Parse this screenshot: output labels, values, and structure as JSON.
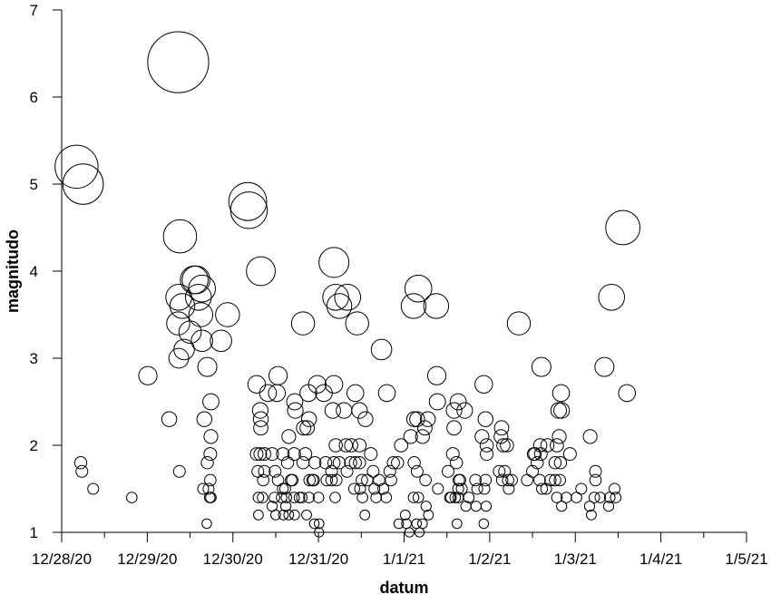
{
  "chart_data": {
    "type": "scatter",
    "title": "",
    "xlabel": "datum",
    "ylabel": "magnitudo",
    "x_axis": {
      "type": "date",
      "min": "2020-12-28",
      "max": "2021-01-05",
      "ticks": [
        "2020-12-28",
        "2020-12-29",
        "2020-12-30",
        "2020-12-31",
        "2021-01-01",
        "2021-01-02",
        "2021-01-03",
        "2021-01-04",
        "2021-01-05"
      ],
      "tick_labels": [
        "12/28/20",
        "12/29/20",
        "12/30/20",
        "12/31/20",
        "1/1/21",
        "1/2/21",
        "1/3/21",
        "1/4/21",
        "1/5/21"
      ],
      "minor_ticks_per_major": 1
    },
    "y_axis": {
      "min": 1,
      "max": 7,
      "ticks": [
        1,
        2,
        3,
        4,
        5,
        6,
        7
      ],
      "tick_labels": [
        "1",
        "2",
        "3",
        "4",
        "5",
        "6",
        "7"
      ]
    },
    "grid": false,
    "legend": "none",
    "marker": "open circle, size proportional to magnitudo",
    "colors": {
      "marker_stroke": "#000000",
      "axis": "#000000",
      "background": "#ffffff"
    },
    "points": [
      {
        "x": "2020-12-28 04:10",
        "y": 5.2
      },
      {
        "x": "2020-12-28 06:00",
        "y": 5.0
      },
      {
        "x": "2020-12-28 05:20",
        "y": 1.8
      },
      {
        "x": "2020-12-28 05:40",
        "y": 1.7
      },
      {
        "x": "2020-12-28 08:50",
        "y": 1.5
      },
      {
        "x": "2020-12-28 19:40",
        "y": 1.4
      },
      {
        "x": "2020-12-29 00:10",
        "y": 2.8
      },
      {
        "x": "2020-12-29 06:10",
        "y": 2.3
      },
      {
        "x": "2020-12-29 08:40",
        "y": 6.4
      },
      {
        "x": "2020-12-29 09:10",
        "y": 4.4
      },
      {
        "x": "2020-12-29 08:50",
        "y": 3.7
      },
      {
        "x": "2020-12-29 09:50",
        "y": 3.6
      },
      {
        "x": "2020-12-29 08:40",
        "y": 3.4
      },
      {
        "x": "2020-12-29 10:20",
        "y": 3.1
      },
      {
        "x": "2020-12-29 08:50",
        "y": 3.0
      },
      {
        "x": "2020-12-29 09:00",
        "y": 1.7
      },
      {
        "x": "2020-12-29 13:10",
        "y": 3.9
      },
      {
        "x": "2020-12-29 13:40",
        "y": 3.9
      },
      {
        "x": "2020-12-29 14:20",
        "y": 3.7
      },
      {
        "x": "2020-12-29 15:20",
        "y": 3.8
      },
      {
        "x": "2020-12-29 15:00",
        "y": 3.5
      },
      {
        "x": "2020-12-29 12:00",
        "y": 3.3
      },
      {
        "x": "2020-12-29 15:20",
        "y": 3.2
      },
      {
        "x": "2020-12-29 16:50",
        "y": 2.9
      },
      {
        "x": "2020-12-29 16:00",
        "y": 2.3
      },
      {
        "x": "2020-12-29 17:50",
        "y": 2.5
      },
      {
        "x": "2020-12-29 17:50",
        "y": 2.1
      },
      {
        "x": "2020-12-29 17:40",
        "y": 1.9
      },
      {
        "x": "2020-12-29 16:50",
        "y": 1.8
      },
      {
        "x": "2020-12-29 17:40",
        "y": 1.6
      },
      {
        "x": "2020-12-29 15:40",
        "y": 1.5
      },
      {
        "x": "2020-12-29 17:10",
        "y": 1.5
      },
      {
        "x": "2020-12-29 17:30",
        "y": 1.4
      },
      {
        "x": "2020-12-29 17:50",
        "y": 1.4
      },
      {
        "x": "2020-12-29 16:40",
        "y": 1.1
      },
      {
        "x": "2020-12-29 20:40",
        "y": 3.2
      },
      {
        "x": "2020-12-29 22:30",
        "y": 3.5
      },
      {
        "x": "2020-12-30 04:10",
        "y": 4.8
      },
      {
        "x": "2020-12-30 04:30",
        "y": 4.7
      },
      {
        "x": "2020-12-30 07:50",
        "y": 4.0
      },
      {
        "x": "2020-12-30 06:40",
        "y": 2.7
      },
      {
        "x": "2020-12-30 09:50",
        "y": 2.6
      },
      {
        "x": "2020-12-30 07:40",
        "y": 2.4
      },
      {
        "x": "2020-12-30 07:50",
        "y": 2.3
      },
      {
        "x": "2020-12-30 07:50",
        "y": 2.2
      },
      {
        "x": "2020-12-30 06:40",
        "y": 1.9
      },
      {
        "x": "2020-12-30 07:40",
        "y": 1.9
      },
      {
        "x": "2020-12-30 08:50",
        "y": 1.9
      },
      {
        "x": "2020-12-30 07:00",
        "y": 1.7
      },
      {
        "x": "2020-12-30 08:50",
        "y": 1.7
      },
      {
        "x": "2020-12-30 08:30",
        "y": 1.6
      },
      {
        "x": "2020-12-30 07:10",
        "y": 1.4
      },
      {
        "x": "2020-12-30 08:20",
        "y": 1.4
      },
      {
        "x": "2020-12-30 07:10",
        "y": 1.2
      },
      {
        "x": "2020-12-30 12:40",
        "y": 2.8
      },
      {
        "x": "2020-12-30 12:20",
        "y": 2.6
      },
      {
        "x": "2020-12-30 11:00",
        "y": 1.9
      },
      {
        "x": "2020-12-30 11:50",
        "y": 1.7
      },
      {
        "x": "2020-12-30 12:40",
        "y": 1.6
      },
      {
        "x": "2020-12-30 11:40",
        "y": 1.4
      },
      {
        "x": "2020-12-30 11:00",
        "y": 1.3
      },
      {
        "x": "2020-12-30 12:00",
        "y": 1.2
      },
      {
        "x": "2020-12-30 15:40",
        "y": 2.1
      },
      {
        "x": "2020-12-30 14:00",
        "y": 1.9
      },
      {
        "x": "2020-12-30 15:20",
        "y": 1.8
      },
      {
        "x": "2020-12-30 14:00",
        "y": 1.5
      },
      {
        "x": "2020-12-30 14:40",
        "y": 1.5
      },
      {
        "x": "2020-12-30 15:00",
        "y": 1.4
      },
      {
        "x": "2020-12-30 13:40",
        "y": 1.4
      },
      {
        "x": "2020-12-30 14:50",
        "y": 1.3
      },
      {
        "x": "2020-12-30 14:10",
        "y": 1.2
      },
      {
        "x": "2020-12-30 15:40",
        "y": 1.2
      },
      {
        "x": "2020-12-30 17:20",
        "y": 2.5
      },
      {
        "x": "2020-12-30 17:30",
        "y": 2.4
      },
      {
        "x": "2020-12-30 17:10",
        "y": 1.9
      },
      {
        "x": "2020-12-30 16:20",
        "y": 1.6
      },
      {
        "x": "2020-12-30 16:40",
        "y": 1.6
      },
      {
        "x": "2020-12-30 17:10",
        "y": 1.4
      },
      {
        "x": "2020-12-30 18:40",
        "y": 1.4
      },
      {
        "x": "2020-12-30 17:20",
        "y": 1.2
      },
      {
        "x": "2020-12-30 19:40",
        "y": 3.4
      },
      {
        "x": "2020-12-30 19:50",
        "y": 2.2
      },
      {
        "x": "2020-12-30 20:50",
        "y": 2.2
      },
      {
        "x": "2020-12-30 21:20",
        "y": 2.3
      },
      {
        "x": "2020-12-30 19:40",
        "y": 1.8
      },
      {
        "x": "2020-12-30 20:20",
        "y": 1.9
      },
      {
        "x": "2020-12-30 21:30",
        "y": 1.6
      },
      {
        "x": "2020-12-30 22:20",
        "y": 1.6
      },
      {
        "x": "2020-12-30 19:20",
        "y": 1.4
      },
      {
        "x": "2020-12-30 21:20",
        "y": 1.4
      },
      {
        "x": "2020-12-30 20:40",
        "y": 1.2
      },
      {
        "x": "2020-12-30 22:50",
        "y": 1.1
      },
      {
        "x": "2020-12-30 21:10",
        "y": 2.6
      },
      {
        "x": "2020-12-30 23:40",
        "y": 2.7
      },
      {
        "x": "2020-12-30 23:00",
        "y": 1.8
      },
      {
        "x": "2020-12-30 22:40",
        "y": 1.6
      },
      {
        "x": "2020-12-31 00:00",
        "y": 1.4
      },
      {
        "x": "2020-12-31 00:10",
        "y": 1.1
      },
      {
        "x": "2020-12-31 00:10",
        "y": 1.0
      },
      {
        "x": "2020-12-31 04:20",
        "y": 4.1
      },
      {
        "x": "2020-12-31 04:50",
        "y": 3.7
      },
      {
        "x": "2020-12-31 05:50",
        "y": 3.6
      },
      {
        "x": "2020-12-31 08:10",
        "y": 3.7
      },
      {
        "x": "2020-12-31 01:30",
        "y": 2.6
      },
      {
        "x": "2020-12-31 04:20",
        "y": 2.7
      },
      {
        "x": "2020-12-31 04:00",
        "y": 2.4
      },
      {
        "x": "2020-12-31 07:10",
        "y": 2.4
      },
      {
        "x": "2020-12-31 04:50",
        "y": 2.0
      },
      {
        "x": "2020-12-31 02:00",
        "y": 1.8
      },
      {
        "x": "2020-12-31 04:20",
        "y": 1.8
      },
      {
        "x": "2020-12-31 05:50",
        "y": 1.8
      },
      {
        "x": "2020-12-31 02:20",
        "y": 1.6
      },
      {
        "x": "2020-12-31 03:40",
        "y": 1.6
      },
      {
        "x": "2020-12-31 05:00",
        "y": 1.6
      },
      {
        "x": "2020-12-31 04:40",
        "y": 1.4
      },
      {
        "x": "2020-12-31 03:40",
        "y": 1.7
      },
      {
        "x": "2020-12-31 10:50",
        "y": 3.4
      },
      {
        "x": "2020-12-31 10:20",
        "y": 2.6
      },
      {
        "x": "2020-12-31 11:30",
        "y": 2.4
      },
      {
        "x": "2020-12-31 13:10",
        "y": 2.3
      },
      {
        "x": "2020-12-31 07:40",
        "y": 2.0
      },
      {
        "x": "2020-12-31 09:10",
        "y": 2.0
      },
      {
        "x": "2020-12-31 11:30",
        "y": 2.0
      },
      {
        "x": "2020-12-31 08:00",
        "y": 1.7
      },
      {
        "x": "2020-12-31 09:00",
        "y": 1.8
      },
      {
        "x": "2020-12-31 10:20",
        "y": 1.8
      },
      {
        "x": "2020-12-31 11:30",
        "y": 1.8
      },
      {
        "x": "2020-12-31 12:10",
        "y": 1.6
      },
      {
        "x": "2020-12-31 10:00",
        "y": 1.5
      },
      {
        "x": "2020-12-31 11:40",
        "y": 1.5
      },
      {
        "x": "2020-12-31 12:20",
        "y": 1.4
      },
      {
        "x": "2020-12-31 13:00",
        "y": 1.2
      },
      {
        "x": "2020-12-31 13:40",
        "y": 1.6
      },
      {
        "x": "2020-12-31 17:40",
        "y": 3.1
      },
      {
        "x": "2020-12-31 19:10",
        "y": 2.6
      },
      {
        "x": "2020-12-31 14:40",
        "y": 1.9
      },
      {
        "x": "2020-12-31 15:20",
        "y": 1.7
      },
      {
        "x": "2020-12-31 15:40",
        "y": 1.5
      },
      {
        "x": "2020-12-31 16:10",
        "y": 1.4
      },
      {
        "x": "2020-12-31 17:00",
        "y": 1.6
      },
      {
        "x": "2020-12-31 18:10",
        "y": 1.5
      },
      {
        "x": "2020-12-31 19:00",
        "y": 1.4
      },
      {
        "x": "2020-12-31 20:00",
        "y": 1.7
      },
      {
        "x": "2020-12-31 20:20",
        "y": 1.6
      },
      {
        "x": "2020-12-31 21:00",
        "y": 1.8
      },
      {
        "x": "2020-12-31 22:10",
        "y": 1.8
      },
      {
        "x": "2020-12-31 23:10",
        "y": 2.0
      },
      {
        "x": "2020-12-31 22:30",
        "y": 1.1
      },
      {
        "x": "2021-01-01 00:20",
        "y": 1.2
      },
      {
        "x": "2021-01-01 00:40",
        "y": 1.1
      },
      {
        "x": "2021-01-01 01:30",
        "y": 1.0
      },
      {
        "x": "2021-01-01 02:40",
        "y": 3.6
      },
      {
        "x": "2021-01-01 04:00",
        "y": 3.8
      },
      {
        "x": "2021-01-01 02:50",
        "y": 2.3
      },
      {
        "x": "2021-01-01 03:40",
        "y": 2.3
      },
      {
        "x": "2021-01-01 01:50",
        "y": 2.1
      },
      {
        "x": "2021-01-01 02:50",
        "y": 1.8
      },
      {
        "x": "2021-01-01 03:40",
        "y": 1.7
      },
      {
        "x": "2021-01-01 04:00",
        "y": 1.4
      },
      {
        "x": "2021-01-01 02:40",
        "y": 1.4
      },
      {
        "x": "2021-01-01 03:30",
        "y": 1.1
      },
      {
        "x": "2021-01-01 04:20",
        "y": 1.0
      },
      {
        "x": "2021-01-01 05:10",
        "y": 1.1
      },
      {
        "x": "2021-01-01 05:50",
        "y": 2.2
      },
      {
        "x": "2021-01-01 05:10",
        "y": 2.1
      },
      {
        "x": "2021-01-01 06:40",
        "y": 2.3
      },
      {
        "x": "2021-01-01 06:00",
        "y": 1.6
      },
      {
        "x": "2021-01-01 06:10",
        "y": 1.3
      },
      {
        "x": "2021-01-01 06:50",
        "y": 1.2
      },
      {
        "x": "2021-01-01 09:00",
        "y": 3.6
      },
      {
        "x": "2021-01-01 09:10",
        "y": 2.8
      },
      {
        "x": "2021-01-01 09:20",
        "y": 2.5
      },
      {
        "x": "2021-01-01 09:30",
        "y": 1.5
      },
      {
        "x": "2021-01-01 14:00",
        "y": 2.4
      },
      {
        "x": "2021-01-01 15:10",
        "y": 2.5
      },
      {
        "x": "2021-01-01 14:00",
        "y": 2.2
      },
      {
        "x": "2021-01-01 13:40",
        "y": 1.9
      },
      {
        "x": "2021-01-01 12:20",
        "y": 1.7
      },
      {
        "x": "2021-01-01 13:10",
        "y": 1.4
      },
      {
        "x": "2021-01-01 12:50",
        "y": 1.4
      },
      {
        "x": "2021-01-01 14:40",
        "y": 1.8
      },
      {
        "x": "2021-01-01 15:20",
        "y": 1.6
      },
      {
        "x": "2021-01-01 15:10",
        "y": 1.5
      },
      {
        "x": "2021-01-01 16:10",
        "y": 1.5
      },
      {
        "x": "2021-01-01 15:40",
        "y": 1.6
      },
      {
        "x": "2021-01-01 14:20",
        "y": 1.4
      },
      {
        "x": "2021-01-01 15:10",
        "y": 1.4
      },
      {
        "x": "2021-01-01 14:50",
        "y": 1.1
      },
      {
        "x": "2021-01-01 17:00",
        "y": 2.4
      },
      {
        "x": "2021-01-01 17:20",
        "y": 1.3
      },
      {
        "x": "2021-01-01 18:10",
        "y": 1.4
      },
      {
        "x": "2021-01-01 20:10",
        "y": 1.3
      },
      {
        "x": "2021-01-01 20:30",
        "y": 1.5
      },
      {
        "x": "2021-01-01 20:00",
        "y": 1.6
      },
      {
        "x": "2021-01-01 21:50",
        "y": 2.1
      },
      {
        "x": "2021-01-01 22:20",
        "y": 2.7
      },
      {
        "x": "2021-01-01 22:50",
        "y": 2.3
      },
      {
        "x": "2021-01-01 23:10",
        "y": 1.9
      },
      {
        "x": "2021-01-01 23:10",
        "y": 2.0
      },
      {
        "x": "2021-01-01 22:50",
        "y": 1.6
      },
      {
        "x": "2021-01-01 23:00",
        "y": 1.3
      },
      {
        "x": "2021-01-01 22:30",
        "y": 1.5
      },
      {
        "x": "2021-01-01 22:20",
        "y": 1.1
      },
      {
        "x": "2021-01-02 03:20",
        "y": 2.2
      },
      {
        "x": "2021-01-02 03:10",
        "y": 2.1
      },
      {
        "x": "2021-01-02 02:40",
        "y": 1.7
      },
      {
        "x": "2021-01-02 03:50",
        "y": 2.0
      },
      {
        "x": "2021-01-02 04:50",
        "y": 2.0
      },
      {
        "x": "2021-01-02 04:10",
        "y": 1.7
      },
      {
        "x": "2021-01-02 05:10",
        "y": 1.6
      },
      {
        "x": "2021-01-02 03:30",
        "y": 1.6
      },
      {
        "x": "2021-01-02 06:10",
        "y": 1.6
      },
      {
        "x": "2021-01-02 05:20",
        "y": 1.5
      },
      {
        "x": "2021-01-02 08:10",
        "y": 3.4
      },
      {
        "x": "2021-01-02 10:30",
        "y": 1.6
      },
      {
        "x": "2021-01-02 12:00",
        "y": 1.7
      },
      {
        "x": "2021-01-02 12:20",
        "y": 1.9
      },
      {
        "x": "2021-01-02 12:40",
        "y": 1.9
      },
      {
        "x": "2021-01-02 13:20",
        "y": 1.8
      },
      {
        "x": "2021-01-02 14:10",
        "y": 2.0
      },
      {
        "x": "2021-01-02 14:20",
        "y": 1.9
      },
      {
        "x": "2021-01-02 14:00",
        "y": 1.6
      },
      {
        "x": "2021-01-02 14:40",
        "y": 1.5
      },
      {
        "x": "2021-01-02 15:50",
        "y": 1.5
      },
      {
        "x": "2021-01-02 14:30",
        "y": 2.9
      },
      {
        "x": "2021-01-02 16:10",
        "y": 2.0
      },
      {
        "x": "2021-01-02 17:00",
        "y": 1.6
      },
      {
        "x": "2021-01-02 18:20",
        "y": 1.6
      },
      {
        "x": "2021-01-02 18:20",
        "y": 1.8
      },
      {
        "x": "2021-01-02 18:50",
        "y": 2.0
      },
      {
        "x": "2021-01-02 19:20",
        "y": 2.4
      },
      {
        "x": "2021-01-02 20:10",
        "y": 2.4
      },
      {
        "x": "2021-01-02 20:00",
        "y": 2.6
      },
      {
        "x": "2021-01-02 19:30",
        "y": 2.1
      },
      {
        "x": "2021-01-02 19:50",
        "y": 1.8
      },
      {
        "x": "2021-01-02 19:40",
        "y": 1.6
      },
      {
        "x": "2021-01-02 18:50",
        "y": 1.4
      },
      {
        "x": "2021-01-02 20:10",
        "y": 1.3
      },
      {
        "x": "2021-01-02 22:30",
        "y": 1.9
      },
      {
        "x": "2021-01-02 21:30",
        "y": 1.4
      },
      {
        "x": "2021-01-03 00:20",
        "y": 1.4
      },
      {
        "x": "2021-01-03 01:40",
        "y": 1.5
      },
      {
        "x": "2021-01-03 04:10",
        "y": 2.1
      },
      {
        "x": "2021-01-03 04:00",
        "y": 1.3
      },
      {
        "x": "2021-01-03 04:30",
        "y": 1.2
      },
      {
        "x": "2021-01-03 05:20",
        "y": 1.4
      },
      {
        "x": "2021-01-03 05:40",
        "y": 1.6
      },
      {
        "x": "2021-01-03 05:40",
        "y": 1.7
      },
      {
        "x": "2021-01-03 07:00",
        "y": 1.4
      },
      {
        "x": "2021-01-03 08:10",
        "y": 2.9
      },
      {
        "x": "2021-01-03 09:20",
        "y": 1.3
      },
      {
        "x": "2021-01-03 09:40",
        "y": 1.4
      },
      {
        "x": "2021-01-03 10:10",
        "y": 3.7
      },
      {
        "x": "2021-01-03 11:00",
        "y": 1.5
      },
      {
        "x": "2021-01-03 11:20",
        "y": 1.4
      },
      {
        "x": "2021-01-03 13:20",
        "y": 4.5
      },
      {
        "x": "2021-01-03 14:30",
        "y": 2.6
      }
    ]
  }
}
